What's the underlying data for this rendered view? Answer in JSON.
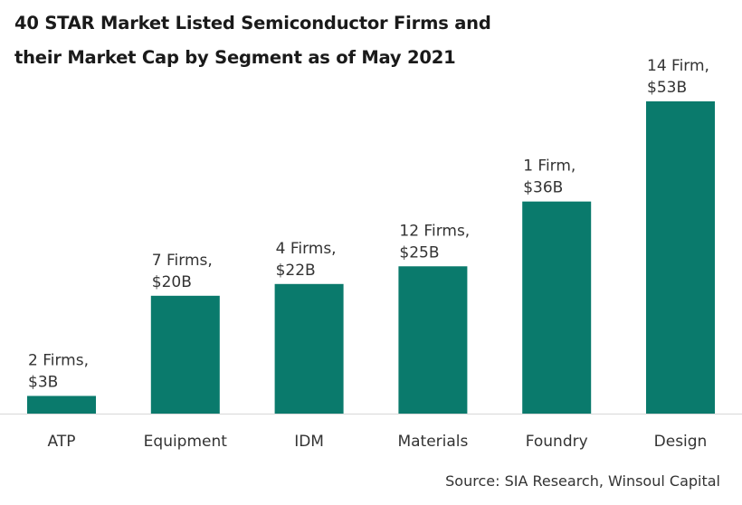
{
  "chart_data": {
    "type": "bar",
    "title_lines": [
      "40 STAR Market Listed Semiconductor Firms and",
      "their Market Cap by Segment as of May 2021"
    ],
    "categories": [
      "ATP",
      "Equipment",
      "IDM",
      "Materials",
      "Foundry",
      "Design"
    ],
    "values": [
      3,
      20,
      22,
      25,
      36,
      53
    ],
    "unit": "$B",
    "data_labels": [
      [
        "2 Firms,",
        "$3B"
      ],
      [
        "7 Firms,",
        "$20B"
      ],
      [
        "4 Firms,",
        "$22B"
      ],
      [
        "12 Firms,",
        "$25B"
      ],
      [
        "1 Firm,",
        "$36B"
      ],
      [
        "14 Firm,",
        "$53B"
      ]
    ],
    "xlabel": "",
    "ylabel": "",
    "ylim": [
      0,
      60
    ],
    "grid": false,
    "bar_color": "#0a7a6c",
    "source": "Source: SIA Research, Winsoul Capital"
  }
}
